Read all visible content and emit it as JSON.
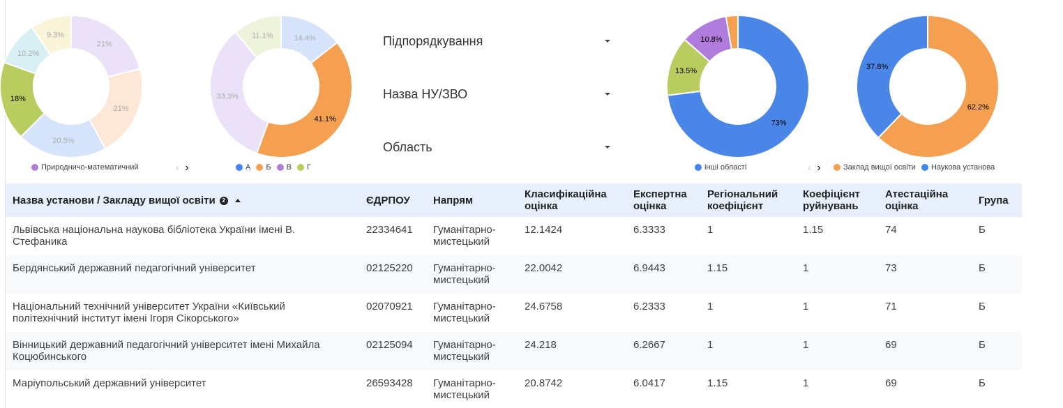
{
  "charts": [
    {
      "id": "napryam",
      "slices": [
        {
          "label": "21%",
          "value": 21,
          "color": "#ebe2f9",
          "text_color": "#aaaaaa"
        },
        {
          "label": "21%",
          "value": 21,
          "color": "#fde8d8",
          "text_color": "#aaaaaa"
        },
        {
          "label": "20.5%",
          "value": 20.5,
          "color": "#d6e4fb",
          "text_color": "#aaaaaa"
        },
        {
          "label": "18%",
          "value": 18,
          "color": "#b8cc60",
          "text_color": "#000000"
        },
        {
          "label": "10.2%",
          "value": 10.2,
          "color": "#d8f0f4",
          "text_color": "#aaaaaa"
        },
        {
          "label": "9.3%",
          "value": 9.3,
          "color": "#faf4d8",
          "text_color": "#aaaaaa"
        }
      ],
      "legend": [
        {
          "label": "Природничо-математичний",
          "color": "#b07cdb"
        }
      ]
    },
    {
      "id": "grupa",
      "slices": [
        {
          "label": "14.4%",
          "value": 14.4,
          "color": "#d6e4fb",
          "text_color": "#aaaaaa"
        },
        {
          "label": "41.1%",
          "value": 41.1,
          "color": "#f4a050",
          "text_color": "#000000"
        },
        {
          "label": "33.3%",
          "value": 33.3,
          "color": "#ebe2f9",
          "text_color": "#aaaaaa"
        },
        {
          "label": "11.1%",
          "value": 11.1,
          "color": "#eef3dc",
          "text_color": "#aaaaaa"
        }
      ],
      "legend": [
        {
          "label": "А",
          "color": "#4285f4"
        },
        {
          "label": "Б",
          "color": "#f4a050"
        },
        {
          "label": "В",
          "color": "#b07cdb"
        },
        {
          "label": "Г",
          "color": "#b8cc60"
        }
      ]
    },
    {
      "id": "oblast",
      "slices": [
        {
          "label": "73%",
          "value": 73,
          "color": "#4a86e8",
          "text_color": "#000000"
        },
        {
          "label": "13.5%",
          "value": 13.5,
          "color": "#b8cc60",
          "text_color": "#000000"
        },
        {
          "label": "10.8%",
          "value": 10.8,
          "color": "#b07cdb",
          "text_color": "#000000"
        },
        {
          "label": "",
          "value": 2.7,
          "color": "#f4a050",
          "text_color": "#000000"
        }
      ],
      "legend": [
        {
          "label": "інші області",
          "color": "#4285f4"
        }
      ]
    },
    {
      "id": "typ",
      "slices": [
        {
          "label": "62.2%",
          "value": 62.2,
          "color": "#f4a050",
          "text_color": "#000000"
        },
        {
          "label": "37.8%",
          "value": 37.8,
          "color": "#4a86e8",
          "text_color": "#000000"
        }
      ],
      "legend": [
        {
          "label": "Заклад вищої освіти",
          "color": "#f4a050"
        },
        {
          "label": "Наукова установа",
          "color": "#4285f4"
        }
      ]
    }
  ],
  "pager": {
    "prev": "‹",
    "next": "›"
  },
  "filters": [
    {
      "label": "Підпорядкування"
    },
    {
      "label": "Назва НУ/ЗВО"
    },
    {
      "label": "Область"
    }
  ],
  "table": {
    "sort_badge": "2",
    "columns": [
      "Назва установи / Закладу вищої освіти",
      "ЄДРПОУ",
      "Напрям",
      "Класифікаційна оцінка",
      "Експертна оцінка",
      "Регіональний коефіцієнт",
      "Коефіцієнт руйнувань",
      "Атестаційна оцінка",
      "Група"
    ],
    "rows": [
      [
        "Львівська національна наукова бібліотека України імені В. Стефаника",
        "22334641",
        "Гуманітарно-мистецький",
        "12.1424",
        "6.3333",
        "1",
        "1.15",
        "74",
        "Б"
      ],
      [
        "Бердянський державний педагогічний університет",
        "02125220",
        "Гуманітарно-мистецький",
        "22.0042",
        "6.9443",
        "1.15",
        "1",
        "73",
        "Б"
      ],
      [
        "Національний технічний університет України «Київський політехнічний інститут імені Ігоря Сікорського»",
        "02070921",
        "Гуманітарно-мистецький",
        "24.6758",
        "6.2333",
        "1",
        "1",
        "71",
        "Б"
      ],
      [
        "Вінницький державний педагогічний університет імені Михайла Коцюбинського",
        "02125094",
        "Гуманітарно-мистецький",
        "24.218",
        "6.2667",
        "1",
        "1",
        "69",
        "Б"
      ],
      [
        "Маріупольський державний університет",
        "26593428",
        "Гуманітарно-мистецький",
        "20.8742",
        "6.0417",
        "1.15",
        "1",
        "69",
        "Б"
      ]
    ]
  }
}
